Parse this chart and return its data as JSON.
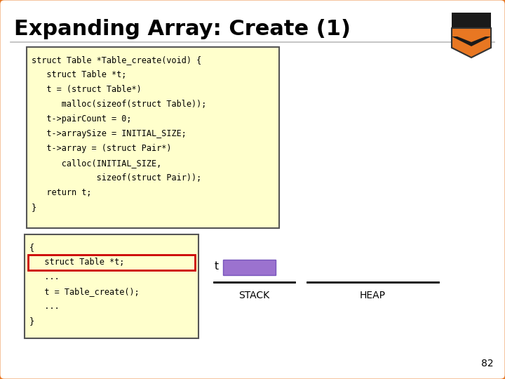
{
  "title": "Expanding Array: Create (1)",
  "title_fontsize": 22,
  "title_color": "#000000",
  "bg_color": "#FFFFFF",
  "outer_border_color": "#E87722",
  "inner_bg": "#FFFFCC",
  "code_main": [
    "struct Table *Table_create(void) {",
    "   struct Table *t;",
    "   t = (struct Table*)",
    "      malloc(sizeof(struct Table));",
    "   t->pairCount = 0;",
    "   t->arraySize = INITIAL_SIZE;",
    "   t->array = (struct Pair*)",
    "      calloc(INITIAL_SIZE,",
    "             sizeof(struct Pair));",
    "   return t;",
    "}"
  ],
  "code_bottom": [
    "{",
    "   struct Table *t;",
    "   ...",
    "   t = Table_create();",
    "   ...",
    "}"
  ],
  "highlight_border": "#CC0000",
  "code_font_size": 8.5,
  "stack_label": "STACK",
  "heap_label": "HEAP",
  "t_label": "t",
  "purple_box_color": "#9B72CF",
  "page_number": "82",
  "monospace_font": "monospace"
}
